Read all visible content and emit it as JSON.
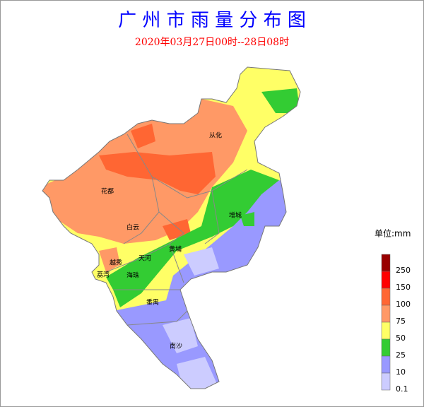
{
  "title": "广 州 市 雨 量 分 布 图",
  "subtitle": "2020年03月27日00时--28日08时",
  "legend": {
    "unit": "单位:mm",
    "items": [
      {
        "label": "250",
        "color": "#990000"
      },
      {
        "label": "150",
        "color": "#ff0000"
      },
      {
        "label": "100",
        "color": "#ff6633"
      },
      {
        "label": "75",
        "color": "#ff9966"
      },
      {
        "label": "50",
        "color": "#ffff66"
      },
      {
        "label": "25",
        "color": "#33cc33"
      },
      {
        "label": "10",
        "color": "#9999ff"
      },
      {
        "label": "0.1",
        "color": "#ccccff"
      }
    ]
  },
  "districts": [
    {
      "label": "从化"
    },
    {
      "label": "花都"
    },
    {
      "label": "增城"
    },
    {
      "label": "白云"
    },
    {
      "label": "黄埔"
    },
    {
      "label": "天河"
    },
    {
      "label": "越秀"
    },
    {
      "label": "荔湾"
    },
    {
      "label": "海珠"
    },
    {
      "label": "番禺"
    },
    {
      "label": "南沙"
    }
  ]
}
